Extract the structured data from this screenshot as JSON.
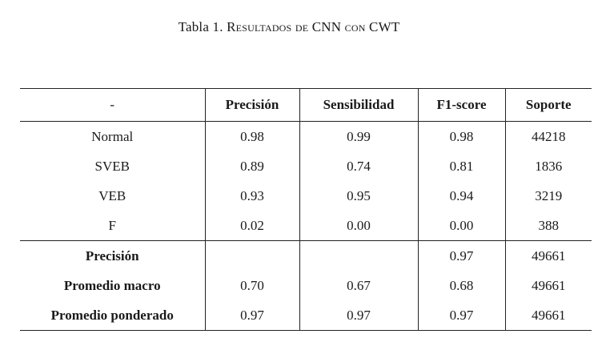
{
  "caption": {
    "label": "Tabla 1.",
    "title": "Resultados de CNN con CWT"
  },
  "table": {
    "headers": [
      "-",
      "Precisión",
      "Sensibilidad",
      "F1-score",
      "Soporte"
    ],
    "rows": [
      [
        "Normal",
        "0.98",
        "0.99",
        "0.98",
        "44218"
      ],
      [
        "SVEB",
        "0.89",
        "0.74",
        "0.81",
        "1836"
      ],
      [
        "VEB",
        "0.93",
        "0.95",
        "0.94",
        "3219"
      ],
      [
        "F",
        "0.02",
        "0.00",
        "0.00",
        "388"
      ]
    ],
    "summary_rows": [
      [
        "Precisión",
        "",
        "",
        "0.97",
        "49661"
      ],
      [
        "Promedio macro",
        "0.70",
        "0.67",
        "0.68",
        "49661"
      ],
      [
        "Promedio ponderado",
        "0.97",
        "0.97",
        "0.97",
        "49661"
      ]
    ]
  }
}
